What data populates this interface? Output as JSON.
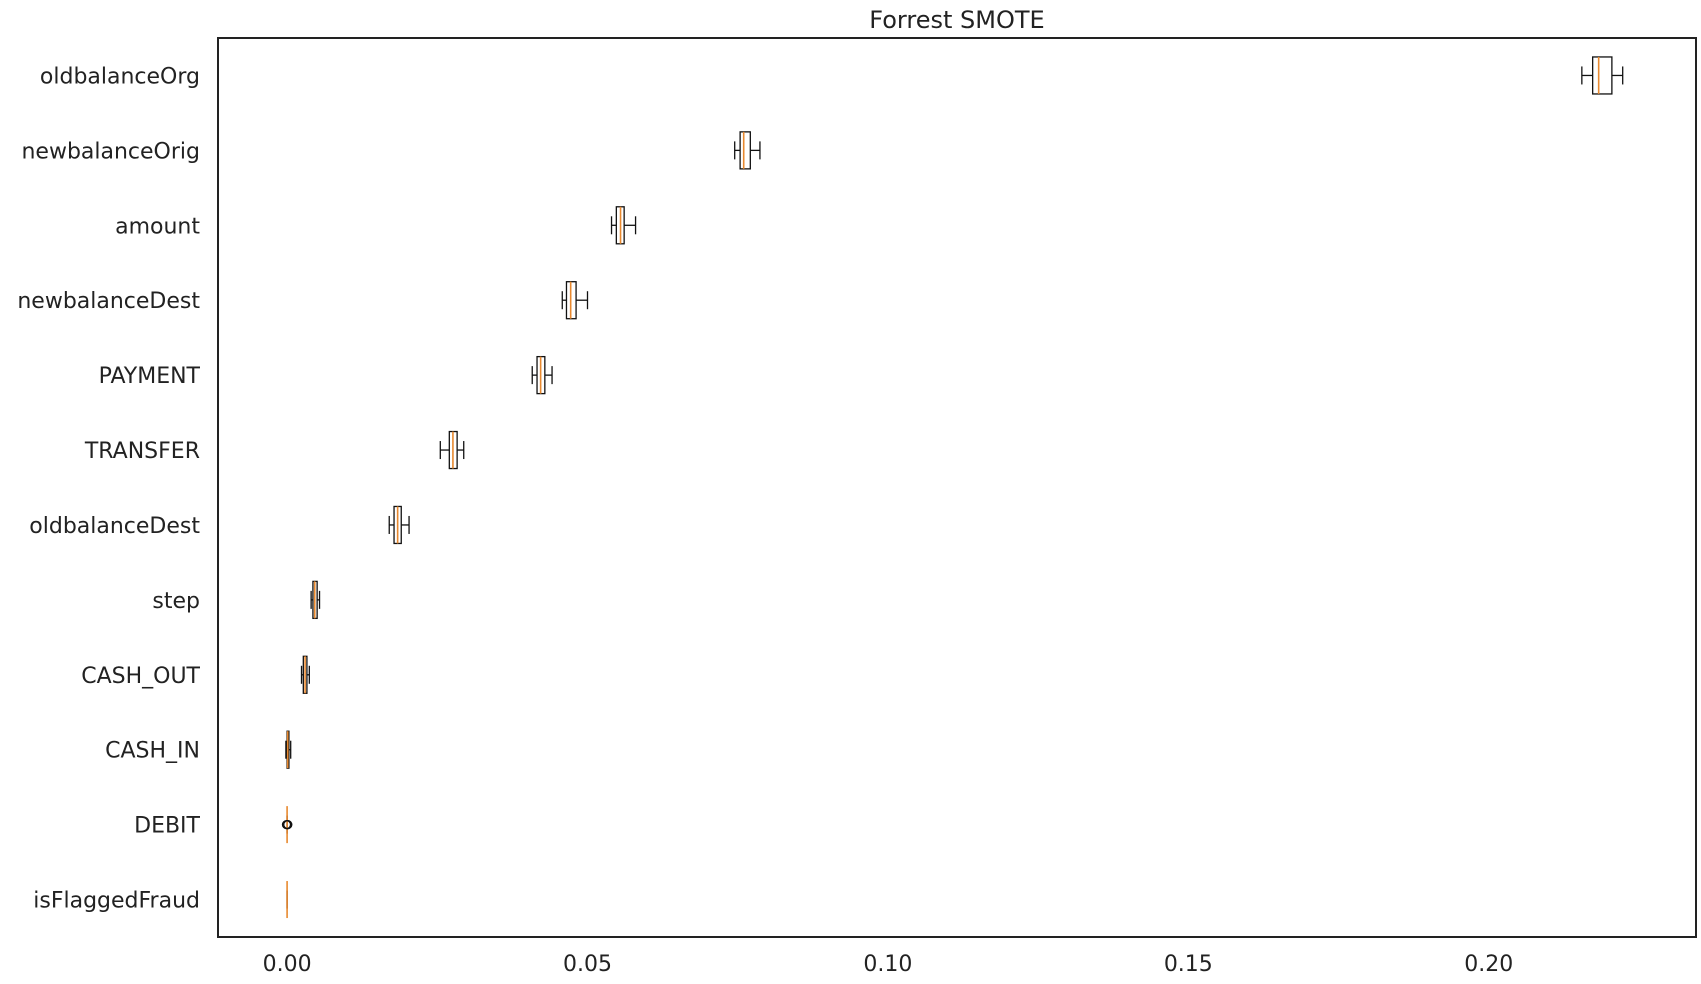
{
  "chart_data": {
    "type": "box",
    "orientation": "horizontal",
    "title": "Forrest SMOTE",
    "xlabel": "",
    "ylabel": "",
    "xlim": [
      -0.0115,
      0.2345
    ],
    "xticks": [
      0.0,
      0.05,
      0.1,
      0.15,
      0.2
    ],
    "xtick_labels": [
      "0.00",
      "0.05",
      "0.10",
      "0.15",
      "0.20"
    ],
    "grid": false,
    "colors": {
      "box_edge": "#111111",
      "median": "#e8892f",
      "frame": "#222222",
      "text": "#222222"
    },
    "categories": [
      "oldbalanceOrg",
      "newbalanceOrig",
      "amount",
      "newbalanceDest",
      "PAYMENT",
      "TRANSFER",
      "oldbalanceDest",
      "step",
      "CASH_OUT",
      "CASH_IN",
      "DEBIT",
      "isFlaggedFraud"
    ],
    "boxes": [
      {
        "label": "oldbalanceOrg",
        "whislo": 0.2155,
        "q1": 0.2173,
        "med": 0.2183,
        "q3": 0.2205,
        "whishi": 0.2223,
        "fliers": []
      },
      {
        "label": "newbalanceOrig",
        "whislo": 0.0745,
        "q1": 0.0754,
        "med": 0.076,
        "q3": 0.0771,
        "whishi": 0.0787,
        "fliers": []
      },
      {
        "label": "amount",
        "whislo": 0.054,
        "q1": 0.0548,
        "med": 0.0555,
        "q3": 0.0561,
        "whishi": 0.058,
        "fliers": []
      },
      {
        "label": "newbalanceDest",
        "whislo": 0.0458,
        "q1": 0.0465,
        "med": 0.0472,
        "q3": 0.0481,
        "whishi": 0.05,
        "fliers": []
      },
      {
        "label": "PAYMENT",
        "whislo": 0.0408,
        "q1": 0.0416,
        "med": 0.0422,
        "q3": 0.0429,
        "whishi": 0.0441,
        "fliers": []
      },
      {
        "label": "TRANSFER",
        "whislo": 0.0255,
        "q1": 0.027,
        "med": 0.0276,
        "q3": 0.0283,
        "whishi": 0.0294,
        "fliers": []
      },
      {
        "label": "oldbalanceDest",
        "whislo": 0.017,
        "q1": 0.0178,
        "med": 0.0184,
        "q3": 0.019,
        "whishi": 0.0203,
        "fliers": []
      },
      {
        "label": "step",
        "whislo": 0.004,
        "q1": 0.0043,
        "med": 0.0046,
        "q3": 0.005,
        "whishi": 0.0054,
        "fliers": []
      },
      {
        "label": "CASH_OUT",
        "whislo": 0.0024,
        "q1": 0.0027,
        "med": 0.003,
        "q3": 0.0033,
        "whishi": 0.0037,
        "fliers": []
      },
      {
        "label": "CASH_IN",
        "whislo": -0.0002,
        "q1": 0.0,
        "med": 0.0001,
        "q3": 0.0003,
        "whishi": 0.0006,
        "fliers": []
      },
      {
        "label": "DEBIT",
        "whislo": 0.0,
        "q1": 0.0,
        "med": 0.0,
        "q3": 0.0,
        "whishi": 0.0,
        "fliers": [
          -0.0001,
          0.0001,
          0.0001
        ]
      },
      {
        "label": "isFlaggedFraud",
        "whislo": 0.0,
        "q1": 0.0,
        "med": 0.0,
        "q3": 0.0,
        "whishi": 0.0,
        "fliers": []
      }
    ]
  }
}
